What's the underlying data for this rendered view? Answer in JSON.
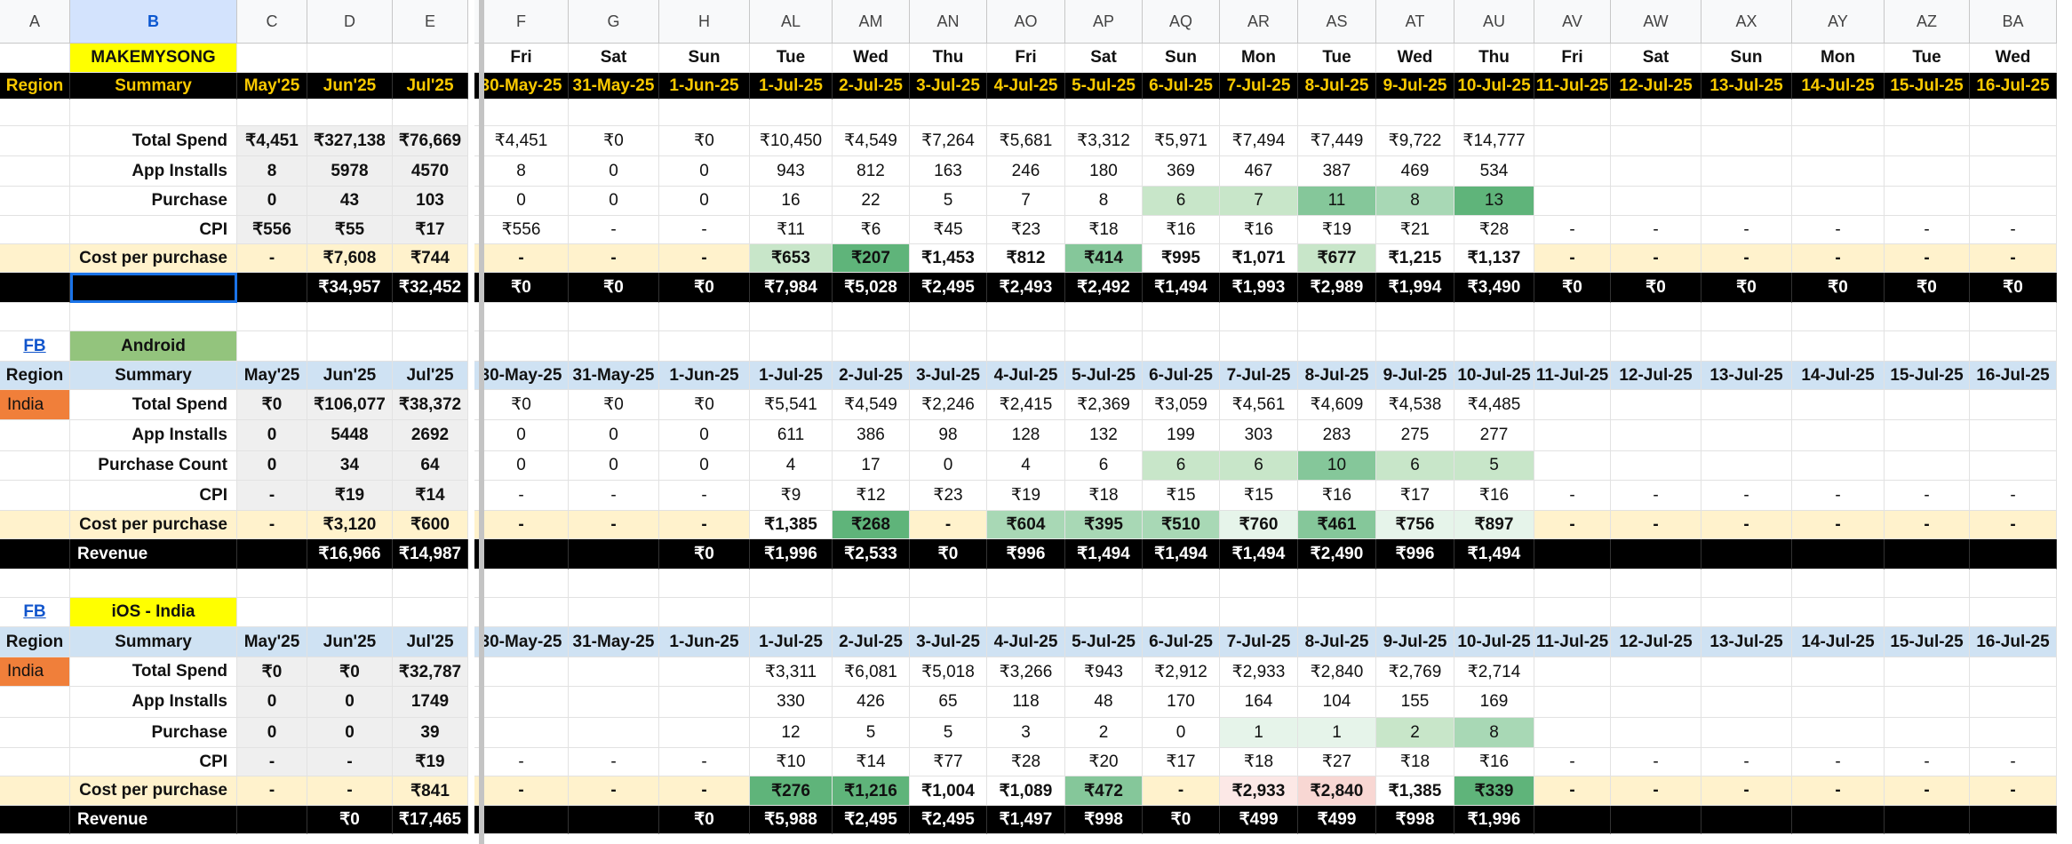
{
  "columns": [
    "A",
    "B",
    "C",
    "D",
    "E",
    "F",
    "G",
    "H",
    "AL",
    "AM",
    "AN",
    "AO",
    "AP",
    "AQ",
    "AR",
    "AS",
    "AT",
    "AU",
    "AV",
    "AW",
    "AX",
    "AY",
    "AZ",
    "BA"
  ],
  "selected_column": "B",
  "colors": {
    "black": "#000000",
    "gold": "#f9c900",
    "yellow": "#ffff00",
    "android_green": "#93c47d",
    "light_blue": "#cfe2f3",
    "orange": "#f07f3a",
    "cream": "#fff2cc",
    "summary_gray": "#efefef",
    "green_1": "#e6f4ea",
    "green_2": "#c8e6c9",
    "green_3": "#a8d8b5",
    "green_4": "#85c79a",
    "green_5": "#5fb47a",
    "pink_1": "#fce8e6",
    "pink_2": "#f8d7d3",
    "cell_border": "#e2e2e2",
    "active_border": "#1a73e8"
  },
  "rows": [
    {
      "type": "header",
      "cells": {
        "F": "Fri",
        "G": "Sat",
        "H": "Sun",
        "AL": "Tue",
        "AM": "Wed",
        "AN": "Thu",
        "AO": "Fri",
        "AP": "Sat",
        "AQ": "Sun",
        "AR": "Mon",
        "AS": "Tue",
        "AT": "Wed",
        "AU": "Thu",
        "AV": "Fri",
        "AW": "Sat",
        "AX": "Sun",
        "AY": "Mon",
        "AZ": "Tue",
        "BA": "Wed",
        "B": "MAKEMYSONG"
      },
      "fills": {
        "B": "yellow"
      },
      "bold": true
    },
    {
      "type": "dates-black",
      "cells": {
        "A": "Region",
        "B": "Summary",
        "C": "May'25",
        "D": "Jun'25",
        "E": "Jul'25",
        "F": "30-May-25",
        "G": "31-May-25",
        "H": "1-Jun-25",
        "AL": "1-Jul-25",
        "AM": "2-Jul-25",
        "AN": "3-Jul-25",
        "AO": "4-Jul-25",
        "AP": "5-Jul-25",
        "AQ": "6-Jul-25",
        "AR": "7-Jul-25",
        "AS": "8-Jul-25",
        "AT": "9-Jul-25",
        "AU": "10-Jul-25",
        "AV": "11-Jul-25",
        "AW": "12-Jul-25",
        "AX": "13-Jul-25",
        "AY": "14-Jul-25",
        "AZ": "15-Jul-25",
        "BA": "16-Jul-25"
      }
    },
    {
      "type": "blank"
    },
    {
      "type": "data",
      "label": "Total Spend",
      "cells": {
        "C": "₹4,451",
        "D": "₹327,138",
        "E": "₹76,669",
        "F": "₹4,451",
        "G": "₹0",
        "H": "₹0",
        "AL": "₹10,450",
        "AM": "₹4,549",
        "AN": "₹7,264",
        "AO": "₹5,681",
        "AP": "₹3,312",
        "AQ": "₹5,971",
        "AR": "₹7,494",
        "AS": "₹7,449",
        "AT": "₹9,722",
        "AU": "₹14,777"
      }
    },
    {
      "type": "data",
      "label": "App Installs",
      "cells": {
        "C": "8",
        "D": "5978",
        "E": "4570",
        "F": "8",
        "G": "0",
        "H": "0",
        "AL": "943",
        "AM": "812",
        "AN": "163",
        "AO": "246",
        "AP": "180",
        "AQ": "369",
        "AR": "467",
        "AS": "387",
        "AT": "469",
        "AU": "534"
      }
    },
    {
      "type": "data",
      "label": "Purchase",
      "cells": {
        "C": "0",
        "D": "43",
        "E": "103",
        "F": "0",
        "G": "0",
        "H": "0",
        "AL": "16",
        "AM": "22",
        "AN": "5",
        "AO": "7",
        "AP": "8",
        "AQ": "6",
        "AR": "7",
        "AS": "11",
        "AT": "8",
        "AU": "13"
      },
      "fills": {
        "AQ": "green_2",
        "AR": "green_2",
        "AS": "green_4",
        "AT": "green_3",
        "AU": "green_5"
      }
    },
    {
      "type": "data",
      "label": "CPI",
      "cells": {
        "C": "₹556",
        "D": "₹55",
        "E": "₹17",
        "F": "₹556",
        "G": "-",
        "H": "-",
        "AL": "₹11",
        "AM": "₹6",
        "AN": "₹45",
        "AO": "₹23",
        "AP": "₹18",
        "AQ": "₹16",
        "AR": "₹16",
        "AS": "₹19",
        "AT": "₹21",
        "AU": "₹28",
        "AV": "-",
        "AW": "-",
        "AX": "-",
        "AY": "-",
        "AZ": "-",
        "BA": "-"
      }
    },
    {
      "type": "cpp",
      "label": "Cost per purchase",
      "cells": {
        "C": "-",
        "D": "₹7,608",
        "E": "₹744",
        "F": "-",
        "G": "-",
        "H": "-",
        "AL": "₹653",
        "AM": "₹207",
        "AN": "₹1,453",
        "AO": "₹812",
        "AP": "₹414",
        "AQ": "₹995",
        "AR": "₹1,071",
        "AS": "₹677",
        "AT": "₹1,215",
        "AU": "₹1,137",
        "AV": "-",
        "AW": "-",
        "AX": "-",
        "AY": "-",
        "AZ": "-",
        "BA": "-"
      },
      "fills": {
        "AL": "green_2",
        "AM": "green_5",
        "AN": "white",
        "AO": "white",
        "AP": "green_4",
        "AQ": "white",
        "AR": "white",
        "AS": "green_2",
        "AT": "white",
        "AU": "white"
      }
    },
    {
      "type": "black",
      "cells": {
        "D": "₹34,957",
        "E": "₹32,452",
        "F": "₹0",
        "G": "₹0",
        "H": "₹0",
        "AL": "₹7,984",
        "AM": "₹5,028",
        "AN": "₹2,495",
        "AO": "₹2,493",
        "AP": "₹2,492",
        "AQ": "₹1,494",
        "AR": "₹1,993",
        "AS": "₹2,989",
        "AT": "₹1,994",
        "AU": "₹3,490",
        "AV": "₹0",
        "AW": "₹0",
        "AX": "₹0",
        "AY": "₹0",
        "AZ": "₹0",
        "BA": "₹0"
      }
    },
    {
      "type": "blank"
    },
    {
      "type": "section",
      "cells": {
        "A": "FB",
        "B": "Android"
      },
      "fills": {
        "B": "android_green"
      }
    },
    {
      "type": "dates-blue",
      "cells": {
        "A": "Region",
        "B": "Summary",
        "C": "May'25",
        "D": "Jun'25",
        "E": "Jul'25",
        "F": "30-May-25",
        "G": "31-May-25",
        "H": "1-Jun-25",
        "AL": "1-Jul-25",
        "AM": "2-Jul-25",
        "AN": "3-Jul-25",
        "AO": "4-Jul-25",
        "AP": "5-Jul-25",
        "AQ": "6-Jul-25",
        "AR": "7-Jul-25",
        "AS": "8-Jul-25",
        "AT": "9-Jul-25",
        "AU": "10-Jul-25",
        "AV": "11-Jul-25",
        "AW": "12-Jul-25",
        "AX": "13-Jul-25",
        "AY": "14-Jul-25",
        "AZ": "15-Jul-25",
        "BA": "16-Jul-25"
      }
    },
    {
      "type": "data",
      "label": "Total Spend",
      "region": "India",
      "cells": {
        "C": "₹0",
        "D": "₹106,077",
        "E": "₹38,372",
        "F": "₹0",
        "G": "₹0",
        "H": "₹0",
        "AL": "₹5,541",
        "AM": "₹4,549",
        "AN": "₹2,246",
        "AO": "₹2,415",
        "AP": "₹2,369",
        "AQ": "₹3,059",
        "AR": "₹4,561",
        "AS": "₹4,609",
        "AT": "₹4,538",
        "AU": "₹4,485"
      }
    },
    {
      "type": "data",
      "label": "App Installs",
      "cells": {
        "C": "0",
        "D": "5448",
        "E": "2692",
        "F": "0",
        "G": "0",
        "H": "0",
        "AL": "611",
        "AM": "386",
        "AN": "98",
        "AO": "128",
        "AP": "132",
        "AQ": "199",
        "AR": "303",
        "AS": "283",
        "AT": "275",
        "AU": "277"
      }
    },
    {
      "type": "data",
      "label": "Purchase Count",
      "cells": {
        "C": "0",
        "D": "34",
        "E": "64",
        "F": "0",
        "G": "0",
        "H": "0",
        "AL": "4",
        "AM": "17",
        "AN": "0",
        "AO": "4",
        "AP": "6",
        "AQ": "6",
        "AR": "6",
        "AS": "10",
        "AT": "6",
        "AU": "5"
      },
      "fills": {
        "AQ": "green_2",
        "AR": "green_2",
        "AS": "green_4",
        "AT": "green_2",
        "AU": "green_2"
      }
    },
    {
      "type": "data",
      "label": "CPI",
      "cells": {
        "C": "-",
        "D": "₹19",
        "E": "₹14",
        "F": "-",
        "G": "-",
        "H": "-",
        "AL": "₹9",
        "AM": "₹12",
        "AN": "₹23",
        "AO": "₹19",
        "AP": "₹18",
        "AQ": "₹15",
        "AR": "₹15",
        "AS": "₹16",
        "AT": "₹17",
        "AU": "₹16",
        "AV": "-",
        "AW": "-",
        "AX": "-",
        "AY": "-",
        "AZ": "-",
        "BA": "-"
      }
    },
    {
      "type": "cpp",
      "label": "Cost per purchase",
      "cells": {
        "C": "-",
        "D": "₹3,120",
        "E": "₹600",
        "F": "-",
        "G": "-",
        "H": "-",
        "AL": "₹1,385",
        "AM": "₹268",
        "AN": "-",
        "AO": "₹604",
        "AP": "₹395",
        "AQ": "₹510",
        "AR": "₹760",
        "AS": "₹461",
        "AT": "₹756",
        "AU": "₹897",
        "AV": "-",
        "AW": "-",
        "AX": "-",
        "AY": "-",
        "AZ": "-",
        "BA": "-"
      },
      "fills": {
        "AL": "white",
        "AM": "green_5",
        "AO": "green_3",
        "AP": "green_3",
        "AQ": "green_3",
        "AR": "green_1",
        "AS": "green_4",
        "AT": "green_1",
        "AU": "green_1"
      }
    },
    {
      "type": "black",
      "label": "Revenue",
      "cells": {
        "D": "₹16,966",
        "E": "₹14,987",
        "H": "₹0",
        "AL": "₹1,996",
        "AM": "₹2,533",
        "AN": "₹0",
        "AO": "₹996",
        "AP": "₹1,494",
        "AQ": "₹1,494",
        "AR": "₹1,494",
        "AS": "₹2,490",
        "AT": "₹996",
        "AU": "₹1,494"
      }
    },
    {
      "type": "blank"
    },
    {
      "type": "section",
      "cells": {
        "A": "FB",
        "B": "iOS - India"
      },
      "fills": {
        "B": "yellow"
      }
    },
    {
      "type": "dates-blue",
      "cells": {
        "A": "Region",
        "B": "Summary",
        "C": "May'25",
        "D": "Jun'25",
        "E": "Jul'25",
        "F": "30-May-25",
        "G": "31-May-25",
        "H": "1-Jun-25",
        "AL": "1-Jul-25",
        "AM": "2-Jul-25",
        "AN": "3-Jul-25",
        "AO": "4-Jul-25",
        "AP": "5-Jul-25",
        "AQ": "6-Jul-25",
        "AR": "7-Jul-25",
        "AS": "8-Jul-25",
        "AT": "9-Jul-25",
        "AU": "10-Jul-25",
        "AV": "11-Jul-25",
        "AW": "12-Jul-25",
        "AX": "13-Jul-25",
        "AY": "14-Jul-25",
        "AZ": "15-Jul-25",
        "BA": "16-Jul-25"
      }
    },
    {
      "type": "data",
      "label": "Total Spend",
      "region": "India",
      "cells": {
        "C": "₹0",
        "D": "₹0",
        "E": "₹32,787",
        "AL": "₹3,311",
        "AM": "₹6,081",
        "AN": "₹5,018",
        "AO": "₹3,266",
        "AP": "₹943",
        "AQ": "₹2,912",
        "AR": "₹2,933",
        "AS": "₹2,840",
        "AT": "₹2,769",
        "AU": "₹2,714"
      }
    },
    {
      "type": "data",
      "label": "App Installs",
      "cells": {
        "C": "0",
        "D": "0",
        "E": "1749",
        "AL": "330",
        "AM": "426",
        "AN": "65",
        "AO": "118",
        "AP": "48",
        "AQ": "170",
        "AR": "164",
        "AS": "104",
        "AT": "155",
        "AU": "169"
      }
    },
    {
      "type": "data",
      "label": "Purchase",
      "cells": {
        "C": "0",
        "D": "0",
        "E": "39",
        "AL": "12",
        "AM": "5",
        "AN": "5",
        "AO": "3",
        "AP": "2",
        "AQ": "0",
        "AR": "1",
        "AS": "1",
        "AT": "2",
        "AU": "8"
      },
      "fills": {
        "AR": "green_1",
        "AS": "green_1",
        "AT": "green_2",
        "AU": "green_3"
      }
    },
    {
      "type": "data",
      "label": "CPI",
      "cells": {
        "C": "-",
        "D": "-",
        "E": "₹19",
        "F": "-",
        "G": "-",
        "H": "-",
        "AL": "₹10",
        "AM": "₹14",
        "AN": "₹77",
        "AO": "₹28",
        "AP": "₹20",
        "AQ": "₹17",
        "AR": "₹18",
        "AS": "₹27",
        "AT": "₹18",
        "AU": "₹16",
        "AV": "-",
        "AW": "-",
        "AX": "-",
        "AY": "-",
        "AZ": "-",
        "BA": "-"
      }
    },
    {
      "type": "cpp",
      "label": "Cost per purchase",
      "cells": {
        "C": "-",
        "D": "-",
        "E": "₹841",
        "F": "-",
        "G": "-",
        "H": "-",
        "AL": "₹276",
        "AM": "₹1,216",
        "AN": "₹1,004",
        "AO": "₹1,089",
        "AP": "₹472",
        "AQ": "-",
        "AR": "₹2,933",
        "AS": "₹2,840",
        "AT": "₹1,385",
        "AU": "₹339",
        "AV": "-",
        "AW": "-",
        "AX": "-",
        "AY": "-",
        "AZ": "-",
        "BA": "-"
      },
      "fills": {
        "AL": "green_5",
        "AM": "green_5",
        "AN": "white",
        "AO": "white",
        "AP": "green_4",
        "AR": "pink_1",
        "AS": "pink_2",
        "AT": "white",
        "AU": "green_5"
      }
    },
    {
      "type": "black",
      "label": "Revenue",
      "cells": {
        "D": "₹0",
        "E": "₹17,465",
        "H": "₹0",
        "AL": "₹5,988",
        "AM": "₹2,495",
        "AN": "₹2,495",
        "AO": "₹1,497",
        "AP": "₹998",
        "AQ": "₹0",
        "AR": "₹499",
        "AS": "₹499",
        "AT": "₹998",
        "AU": "₹1,996"
      }
    }
  ]
}
